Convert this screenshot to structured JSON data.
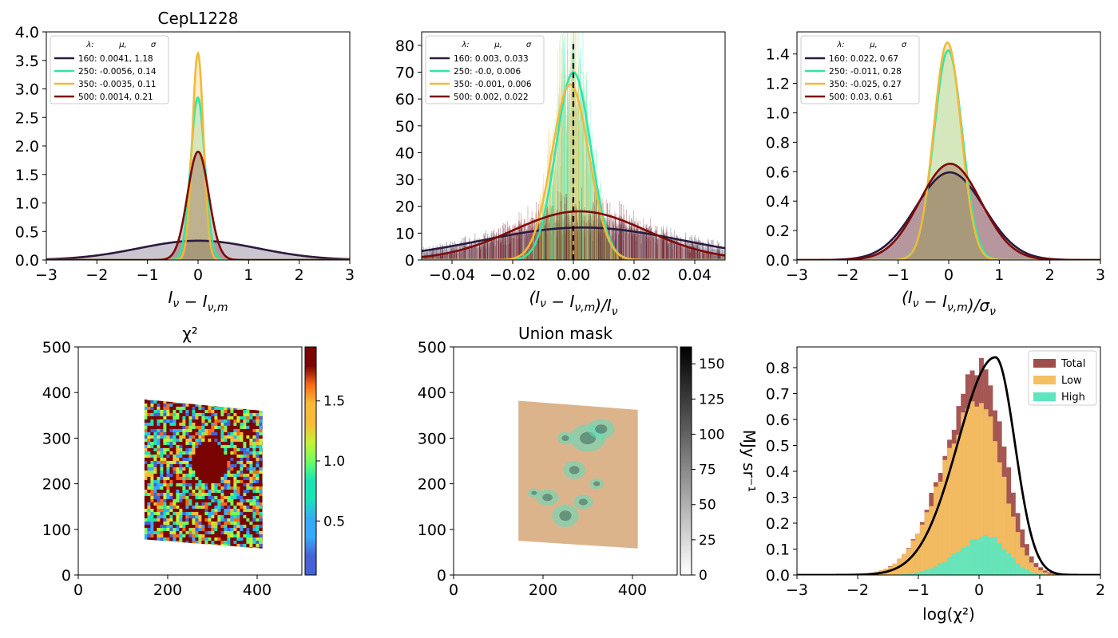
{
  "chart_data": [
    {
      "panel": "A",
      "type": "area",
      "title": "CepL1228",
      "xlabel": "I_ν − I_ν,m",
      "xlim": [
        -3,
        3
      ],
      "ylim": [
        0,
        4.0
      ],
      "xticks": [
        "−3",
        "−2",
        "−1",
        "0",
        "1",
        "2",
        "3"
      ],
      "yticks": [
        "0.0",
        "0.5",
        "1.0",
        "1.5",
        "2.0",
        "2.5",
        "3.0",
        "3.5",
        "4.0"
      ],
      "legend": {
        "placement": "top-left",
        "header": [
          "λ:",
          "μ,",
          "σ"
        ]
      },
      "series": [
        {
          "name": "160: 0.0041,  1.18",
          "color": "#2d1a3f",
          "mu": 0.0041,
          "sigma": 1.18
        },
        {
          "name": "250: -0.0056,  0.14",
          "color": "#2ee6a8",
          "mu": -0.0056,
          "sigma": 0.14
        },
        {
          "name": "350: -0.0035,  0.11",
          "color": "#f2b83a",
          "mu": -0.0035,
          "sigma": 0.11
        },
        {
          "name": "500: 0.0014,  0.21",
          "color": "#7c0a07",
          "mu": 0.0014,
          "sigma": 0.21
        }
      ]
    },
    {
      "panel": "B",
      "type": "area",
      "title": "",
      "xlabel": "(I_ν − I_ν,m)/I_ν",
      "xlim": [
        -0.05,
        0.05
      ],
      "ylim": [
        0,
        85
      ],
      "xticks": [
        "−0.04",
        "−0.02",
        "0.00",
        "0.02",
        "0.04"
      ],
      "yticks": [
        "0",
        "10",
        "20",
        "30",
        "40",
        "50",
        "60",
        "70",
        "80"
      ],
      "vline": 0,
      "legend": {
        "placement": "top-left",
        "header": [
          "λ:",
          "μ,",
          "σ"
        ]
      },
      "series": [
        {
          "name": "160: 0.003,  0.033",
          "color": "#2d1a3f",
          "mu": 0.003,
          "sigma": 0.033
        },
        {
          "name": "250: -0.0,  0.006",
          "color": "#2ee6a8",
          "mu": 0.0,
          "sigma": 0.0057
        },
        {
          "name": "350: -0.001,  0.006",
          "color": "#f2b83a",
          "mu": -0.001,
          "sigma": 0.0061
        },
        {
          "name": "500: 0.002,  0.022",
          "color": "#7c0a07",
          "mu": 0.002,
          "sigma": 0.022
        }
      ]
    },
    {
      "panel": "C",
      "type": "area",
      "title": "",
      "xlabel": "(I_ν − I_ν,m)/σ_ν",
      "xlim": [
        -3,
        3
      ],
      "ylim": [
        0,
        1.55
      ],
      "xticks": [
        "−3",
        "−2",
        "−1",
        "0",
        "1",
        "2",
        "3"
      ],
      "yticks": [
        "0.0",
        "0.2",
        "0.4",
        "0.6",
        "0.8",
        "1.0",
        "1.2",
        "1.4"
      ],
      "legend": {
        "placement": "top-left",
        "header": [
          "λ:",
          "μ,",
          "σ"
        ]
      },
      "series": [
        {
          "name": "160: 0.022,  0.67",
          "color": "#2d1a3f",
          "mu": 0.022,
          "sigma": 0.67
        },
        {
          "name": "250: -0.011,  0.28",
          "color": "#2ee6a8",
          "mu": -0.011,
          "sigma": 0.28
        },
        {
          "name": "350: -0.025,  0.27",
          "color": "#f2b83a",
          "mu": -0.025,
          "sigma": 0.27
        },
        {
          "name": "500: 0.03,  0.61",
          "color": "#7c0a07",
          "mu": 0.03,
          "sigma": 0.61
        }
      ]
    },
    {
      "panel": "D",
      "type": "heatmap",
      "title": "χ²",
      "xlim": [
        0,
        500
      ],
      "ylim": [
        0,
        500
      ],
      "xticks": [
        "0",
        "200",
        "400"
      ],
      "yticks": [
        "0",
        "100",
        "200",
        "300",
        "400",
        "500"
      ],
      "footprint": [
        [
          148,
          385
        ],
        [
          412,
          360
        ],
        [
          412,
          58
        ],
        [
          148,
          78
        ]
      ],
      "colorbar": {
        "range": [
          0.05,
          1.95
        ],
        "ticks": [
          "0.5",
          "1.0",
          "1.5"
        ],
        "colormap": "turbo",
        "label": ""
      }
    },
    {
      "panel": "E",
      "type": "heatmap",
      "title": "Union mask",
      "xlim": [
        0,
        500
      ],
      "ylim": [
        0,
        500
      ],
      "xticks": [
        "0",
        "200",
        "400"
      ],
      "yticks": [
        "0",
        "100",
        "200",
        "300",
        "400",
        "500"
      ],
      "footprint": [
        [
          145,
          382
        ],
        [
          412,
          362
        ],
        [
          412,
          58
        ],
        [
          145,
          75
        ]
      ],
      "colorbar": {
        "range": [
          0,
          162
        ],
        "ticks": [
          "0",
          "25",
          "50",
          "75",
          "100",
          "125",
          "150"
        ],
        "colormap": "gray_r",
        "label": "MJy sr⁻¹"
      }
    },
    {
      "panel": "F",
      "type": "bar",
      "title": "",
      "xlabel": "log(χ²)",
      "xlim": [
        -3,
        2
      ],
      "ylim": [
        0,
        0.88
      ],
      "xticks": [
        "−3",
        "−2",
        "−1",
        "0",
        "1",
        "2"
      ],
      "yticks": [
        "0.0",
        "0.1",
        "0.2",
        "0.3",
        "0.4",
        "0.5",
        "0.6",
        "0.7",
        "0.8"
      ],
      "legend": {
        "placement": "top-right"
      },
      "series": [
        {
          "name": "Total",
          "color": "#a04e4a",
          "mu": 0.05,
          "sigma": 0.5,
          "peak": 0.8
        },
        {
          "name": "Low",
          "color": "#f5c062",
          "mu": 0.0,
          "sigma": 0.5,
          "peak": 0.67
        },
        {
          "name": "High",
          "color": "#5fe6be",
          "mu": 0.15,
          "sigma": 0.42,
          "peak": 0.15
        }
      ],
      "reference_curve": {
        "color": "#000000",
        "mu": 0.27,
        "sigma_left": 0.62,
        "sigma_right": 0.32,
        "peak": 0.84
      }
    }
  ]
}
